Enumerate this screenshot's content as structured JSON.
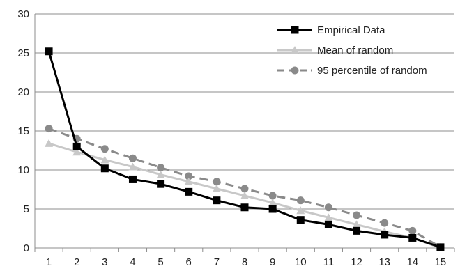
{
  "chart_data": {
    "type": "line",
    "x": [
      1,
      2,
      3,
      4,
      5,
      6,
      7,
      8,
      9,
      10,
      11,
      12,
      13,
      14,
      15
    ],
    "ylim": [
      0,
      30
    ],
    "yticks": [
      0,
      5,
      10,
      15,
      20,
      25,
      30
    ],
    "grid": true,
    "legend_position": "top-right",
    "series": [
      {
        "name": "Empirical Data",
        "color": "#000000",
        "marker": "square",
        "dash": "solid",
        "values": [
          25.2,
          13.0,
          10.2,
          8.8,
          8.2,
          7.2,
          6.1,
          5.2,
          5.0,
          3.6,
          3.0,
          2.2,
          1.7,
          1.3,
          0.1
        ]
      },
      {
        "name": "Mean of random",
        "color": "#c8c8c8",
        "marker": "triangle",
        "dash": "solid",
        "values": [
          13.4,
          12.3,
          11.3,
          10.4,
          9.4,
          8.5,
          7.6,
          6.7,
          5.8,
          4.8,
          3.9,
          3.0,
          2.1,
          1.3,
          0.0
        ]
      },
      {
        "name": "95 percentile of random",
        "color": "#8a8a8a",
        "marker": "circle",
        "dash": "dashed",
        "values": [
          15.3,
          14.0,
          12.7,
          11.5,
          10.3,
          9.2,
          8.5,
          7.6,
          6.7,
          6.1,
          5.2,
          4.2,
          3.2,
          2.2,
          0.1
        ]
      }
    ]
  }
}
